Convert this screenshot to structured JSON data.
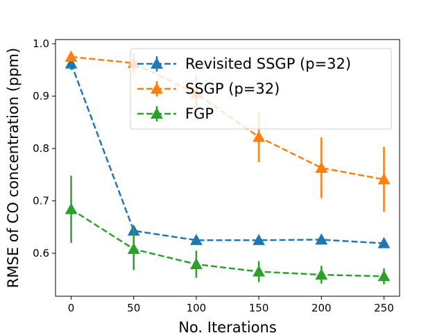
{
  "chart_data": {
    "type": "line",
    "title": "",
    "xlabel": "No. Iterations",
    "ylabel": "RMSE of CO concentration (ppm)",
    "x": [
      0,
      50,
      100,
      150,
      200,
      250
    ],
    "xticks": [
      0,
      50,
      100,
      150,
      200,
      250
    ],
    "yticks": [
      0.6,
      0.7,
      0.8,
      0.9,
      1.0
    ],
    "xtick_labels": [
      "0",
      "50",
      "100",
      "150",
      "200",
      "250"
    ],
    "ytick_labels": [
      "0.6",
      "0.7",
      "0.8",
      "0.9",
      "1.0"
    ],
    "xlim": [
      -12.5,
      262.5
    ],
    "ylim": [
      0.518,
      1.008
    ],
    "grid": false,
    "legend_position": "top-right",
    "series": [
      {
        "name": "Revisited SSGP (p=32)",
        "color": "#1f77b4",
        "values": [
          0.962,
          0.643,
          0.625,
          0.625,
          0.626,
          0.619
        ],
        "errors": [
          0.012,
          0.0,
          0.0,
          0.0,
          0.0,
          0.0
        ]
      },
      {
        "name": "SSGP (p=32)",
        "color": "#ff7f0e",
        "values": [
          0.975,
          0.963,
          0.905,
          0.822,
          0.763,
          0.741
        ],
        "errors": [
          0.006,
          0.02,
          0.035,
          0.048,
          0.058,
          0.062
        ]
      },
      {
        "name": "FGP",
        "color": "#2ca02c",
        "values": [
          0.684,
          0.608,
          0.579,
          0.565,
          0.559,
          0.556
        ],
        "errors": [
          0.064,
          0.04,
          0.026,
          0.02,
          0.017,
          0.015
        ]
      }
    ]
  }
}
